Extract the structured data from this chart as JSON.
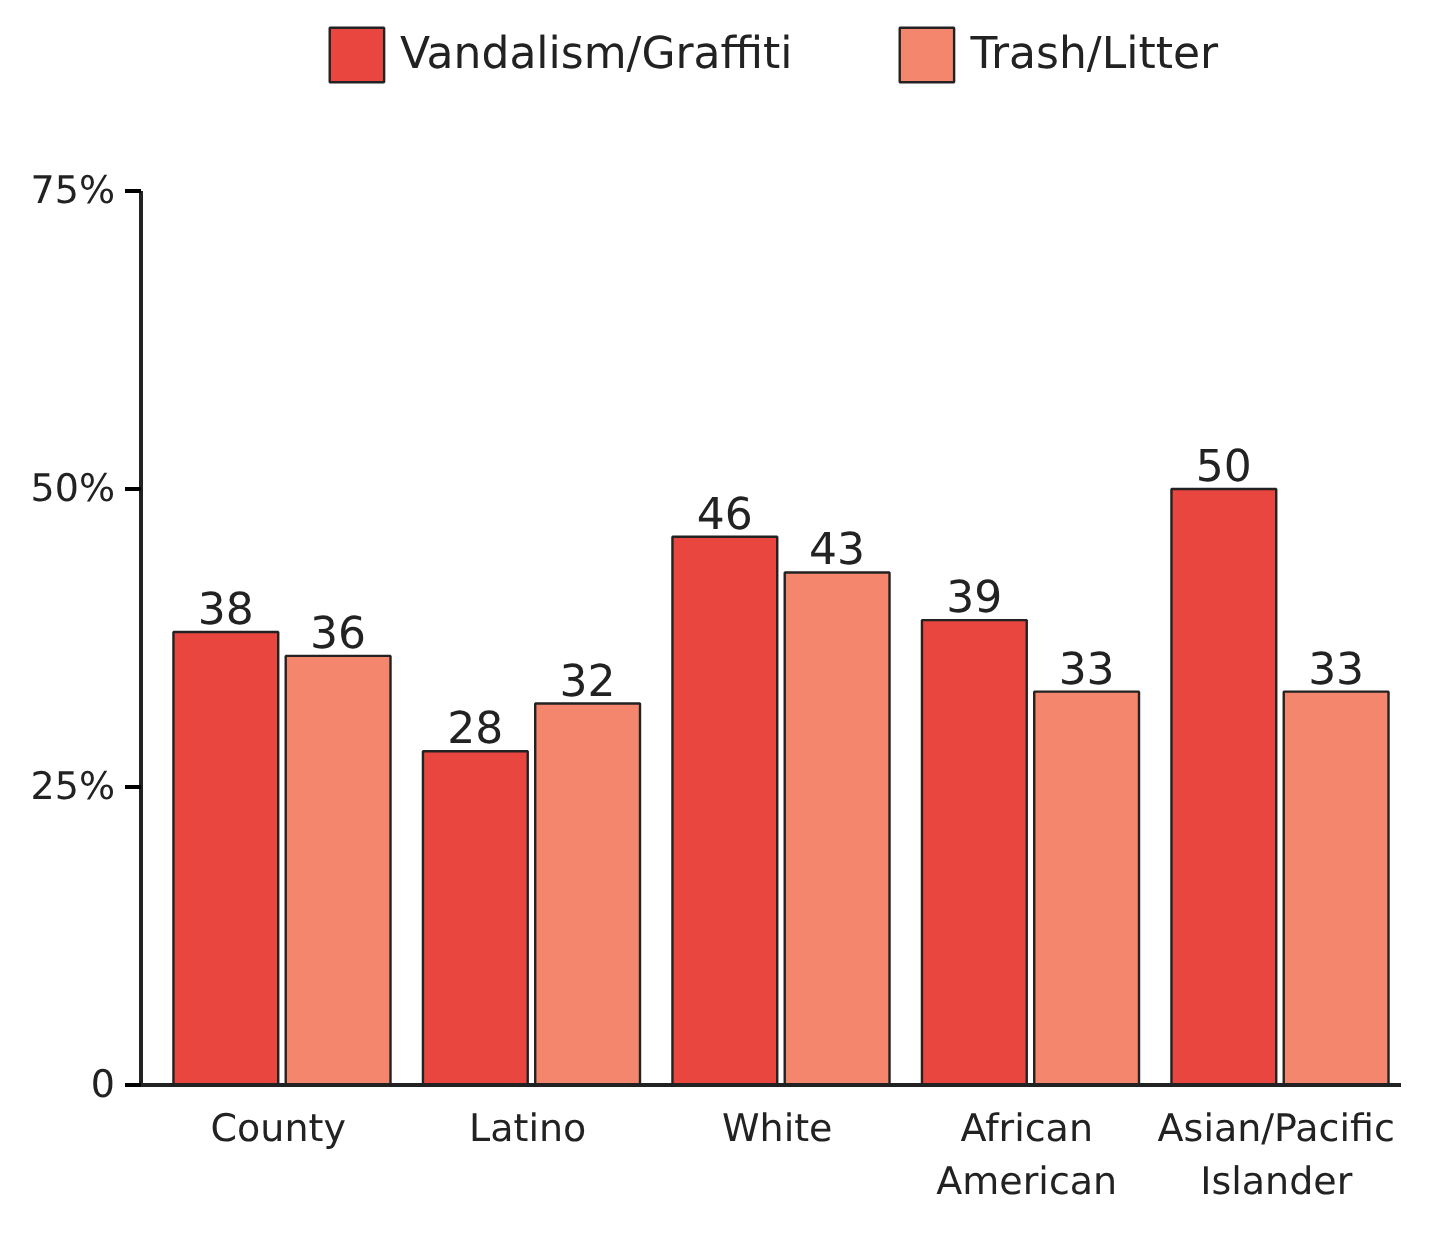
{
  "chart_data": {
    "type": "bar",
    "categories": [
      "County",
      "Latino",
      "White",
      "African American",
      "Asian/Pacific Islander"
    ],
    "series": [
      {
        "name": "Vandalism/Graffiti",
        "color": "#ea4640",
        "values": [
          38,
          28,
          46,
          39,
          50
        ]
      },
      {
        "name": "Trash/Litter",
        "color": "#f3866c",
        "values": [
          36,
          32,
          43,
          33,
          33
        ]
      }
    ],
    "ylim": [
      0,
      75
    ],
    "yticks": [
      {
        "value": 0,
        "label": "0"
      },
      {
        "value": 25,
        "label": "25%"
      },
      {
        "value": 50,
        "label": "50%"
      },
      {
        "value": 75,
        "label": "75%"
      }
    ],
    "data_labels": true,
    "grid": false,
    "legend": "top"
  }
}
